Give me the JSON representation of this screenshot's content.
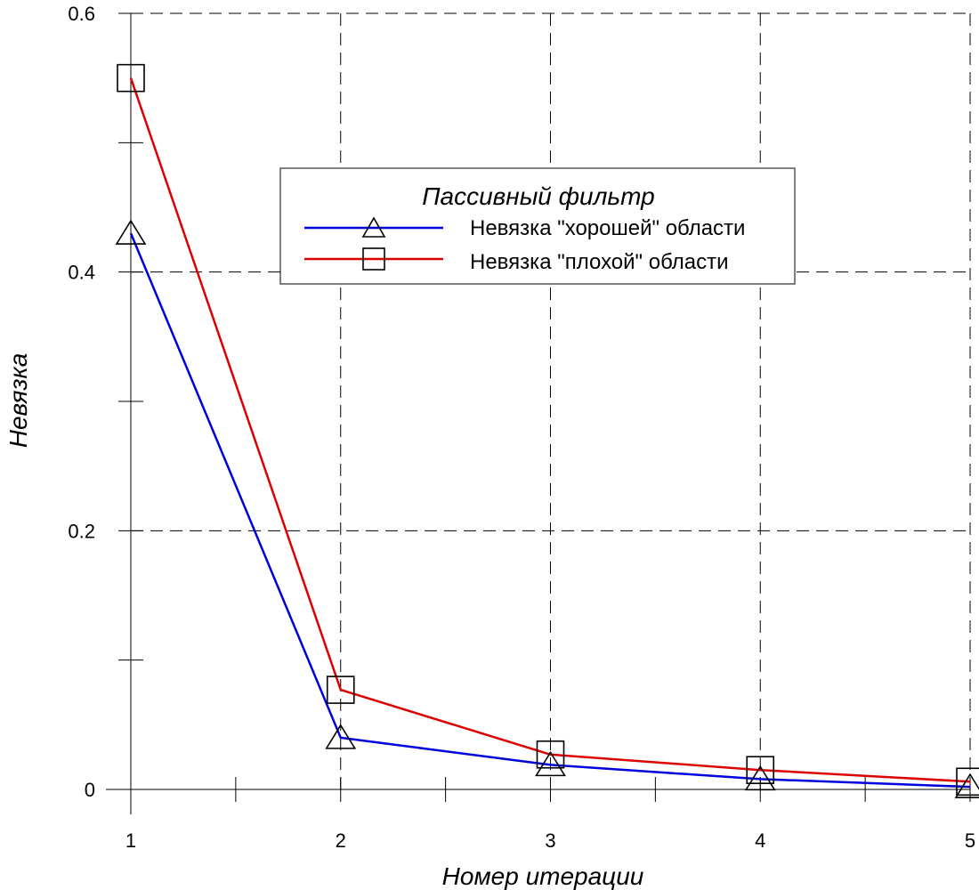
{
  "chart_data": {
    "type": "line",
    "title": "",
    "xlabel": "Номер итерации",
    "ylabel": "Невязка",
    "x": [
      1,
      2,
      3,
      4,
      5
    ],
    "xlim": [
      1,
      5
    ],
    "ylim": [
      0,
      0.6
    ],
    "x_ticks": [
      "1",
      "2",
      "3",
      "4",
      "5"
    ],
    "y_ticks": [
      "0",
      "0.2",
      "0.4",
      "0.6"
    ],
    "grid": true,
    "legend": {
      "title": "Пассивный фильтр",
      "placement": "top-center"
    },
    "series": [
      {
        "name": "Невязка \"хорошей\" области",
        "marker": "triangle",
        "color": "#0000dd",
        "values": [
          0.43,
          0.04,
          0.019,
          0.008,
          0.002
        ]
      },
      {
        "name": "Невязка \"плохой\" области",
        "marker": "square",
        "color": "#dd0000",
        "values": [
          0.55,
          0.077,
          0.027,
          0.015,
          0.006
        ]
      }
    ]
  }
}
